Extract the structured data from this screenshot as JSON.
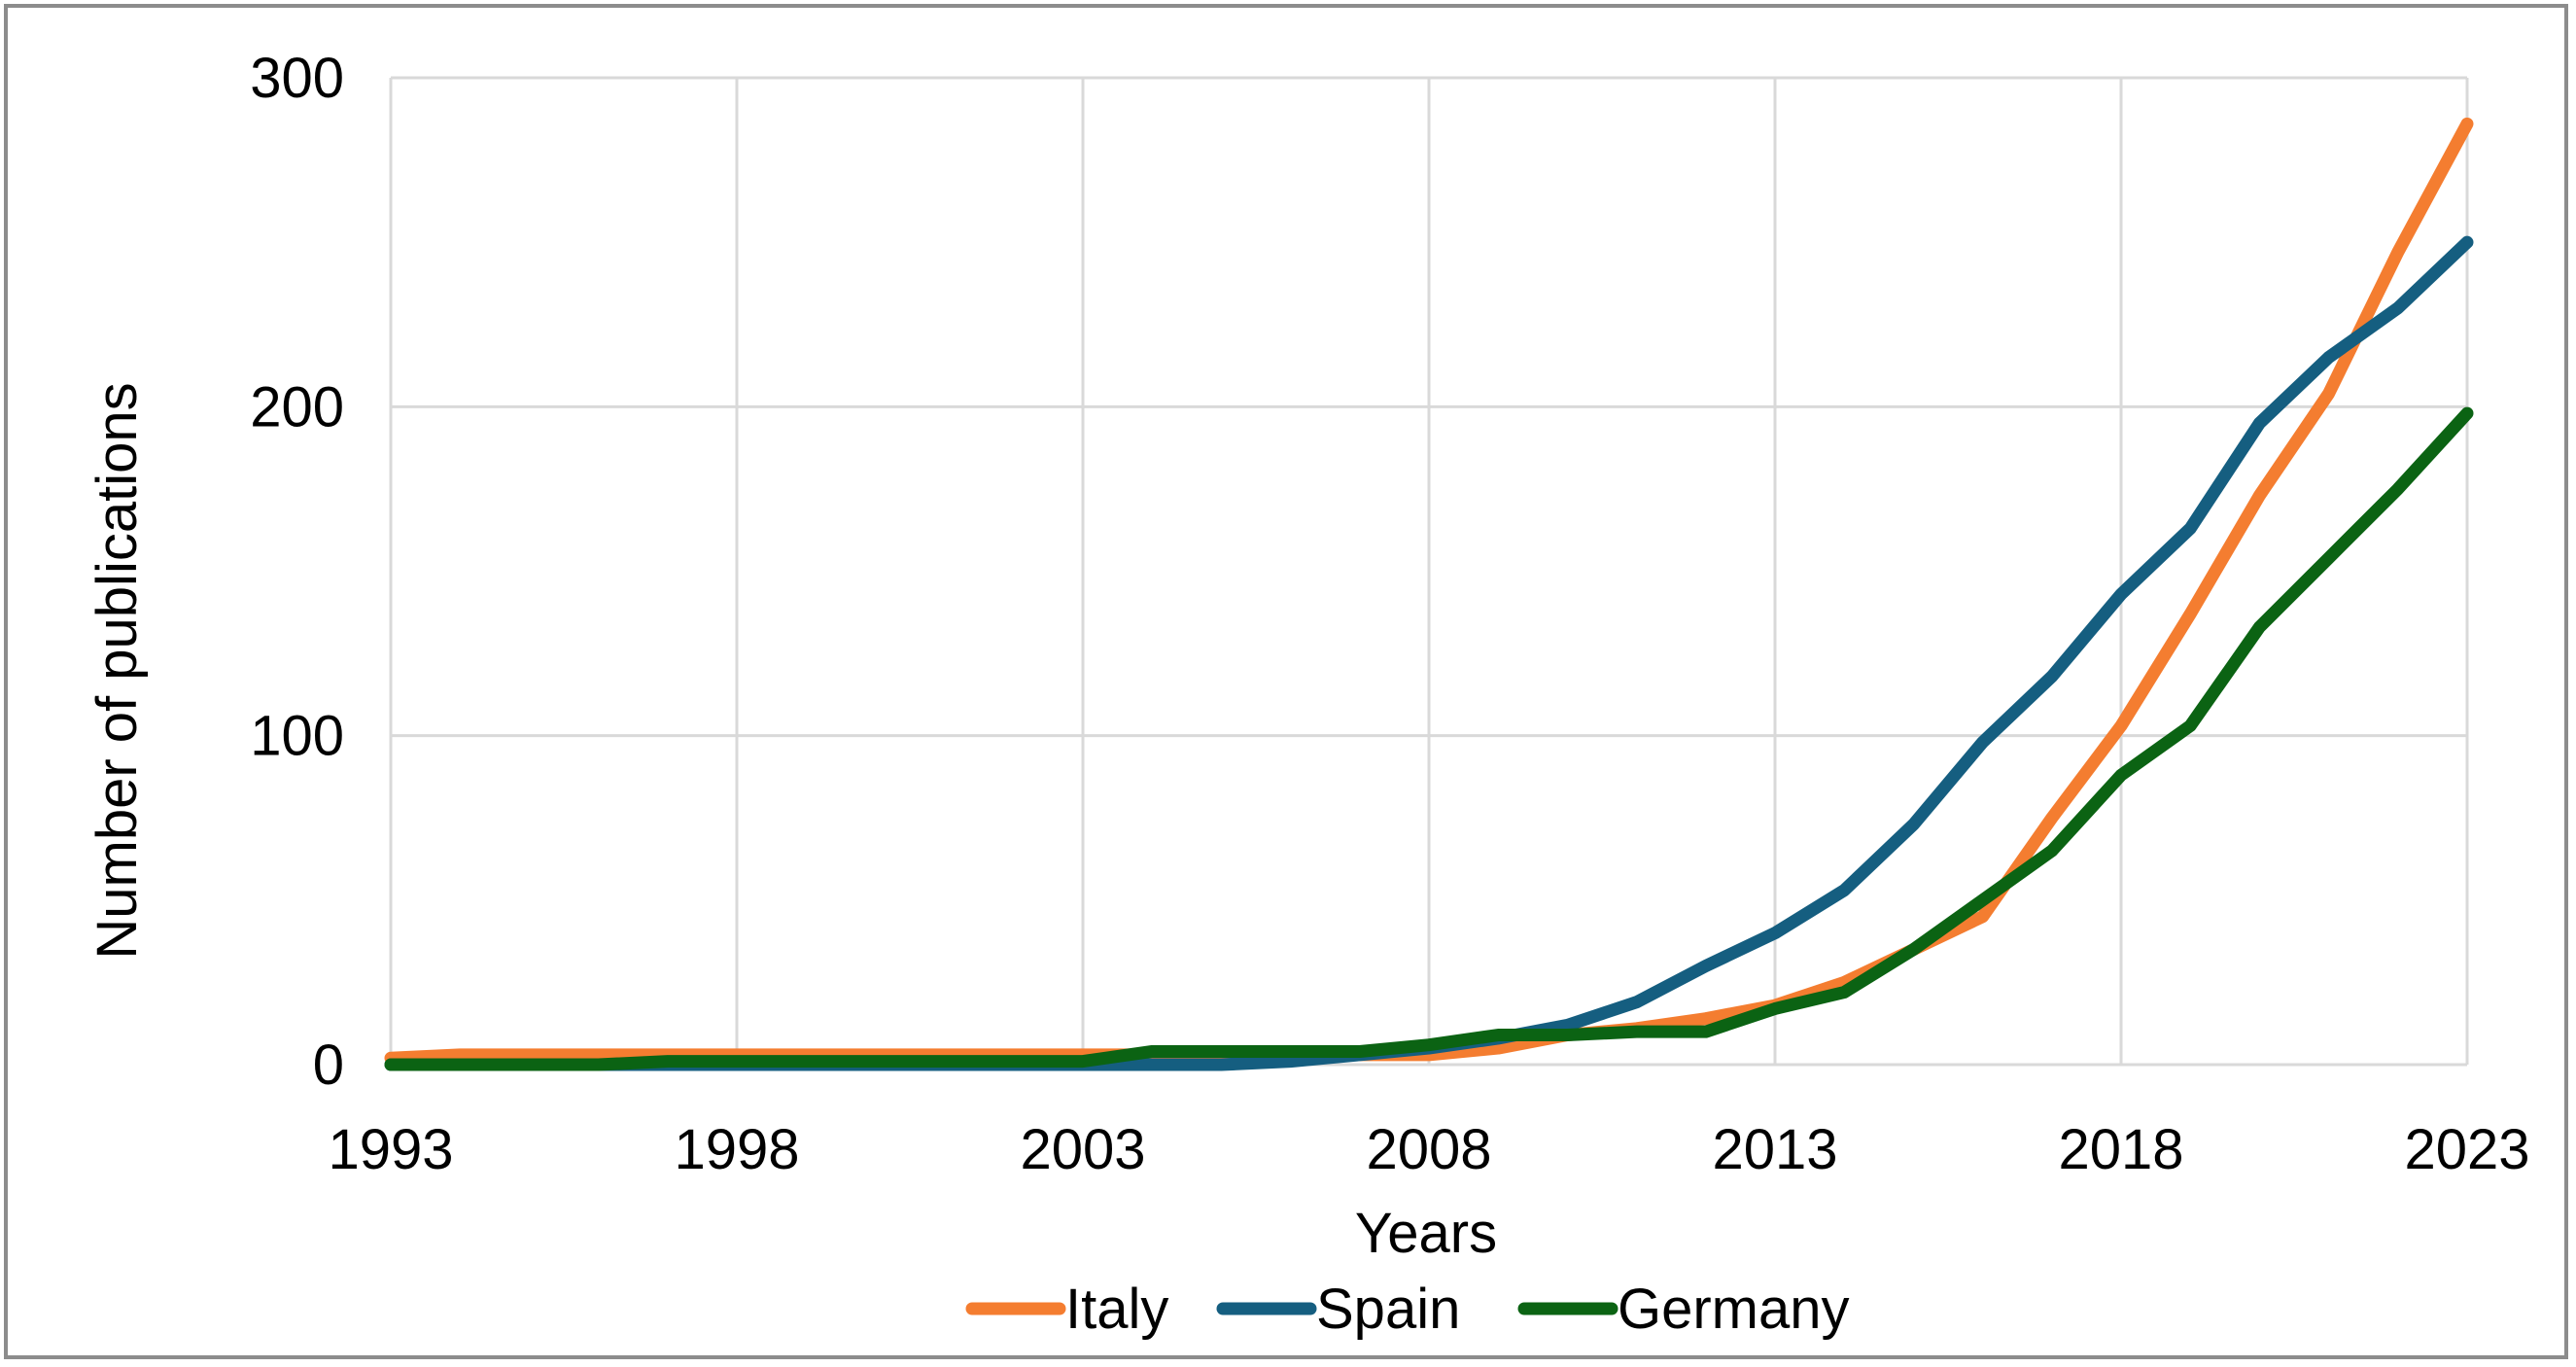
{
  "chart_data": {
    "type": "line",
    "title": "",
    "xlabel": "Years",
    "ylabel": "Number of publications",
    "x": [
      1993,
      1994,
      1995,
      1996,
      1997,
      1998,
      1999,
      2000,
      2001,
      2002,
      2003,
      2004,
      2005,
      2006,
      2007,
      2008,
      2009,
      2010,
      2011,
      2012,
      2013,
      2014,
      2015,
      2016,
      2017,
      2018,
      2019,
      2020,
      2021,
      2022,
      2023
    ],
    "xlim": [
      1993,
      2023
    ],
    "ylim": [
      0,
      300
    ],
    "x_ticks": [
      "1993",
      "1998",
      "2003",
      "2008",
      "2013",
      "2018",
      "2023"
    ],
    "y_ticks": [
      "0",
      "100",
      "200",
      "300"
    ],
    "grid": true,
    "legend_position": "bottom-center",
    "series": [
      {
        "name": "Italy",
        "color": "#f47d30",
        "values": [
          2,
          3,
          3,
          3,
          3,
          3,
          3,
          3,
          3,
          3,
          3,
          3,
          3,
          3,
          3,
          3,
          5,
          9,
          11,
          14,
          18,
          25,
          35,
          45,
          75,
          103,
          137,
          173,
          204,
          247,
          286
        ]
      },
      {
        "name": "Spain",
        "color": "#155e80",
        "values": [
          0,
          0,
          0,
          0,
          0,
          0,
          0,
          0,
          0,
          0,
          0,
          0,
          0,
          1,
          3,
          5,
          8,
          12,
          19,
          30,
          40,
          53,
          73,
          98,
          118,
          143,
          163,
          195,
          215,
          230,
          250
        ]
      },
      {
        "name": "Germany",
        "color": "#0b6313",
        "values": [
          0,
          0,
          0,
          0,
          1,
          1,
          1,
          1,
          1,
          1,
          1,
          4,
          4,
          4,
          4,
          6,
          9,
          9,
          10,
          10,
          17,
          22,
          35,
          50,
          65,
          88,
          103,
          133,
          154,
          175,
          198
        ]
      }
    ]
  }
}
